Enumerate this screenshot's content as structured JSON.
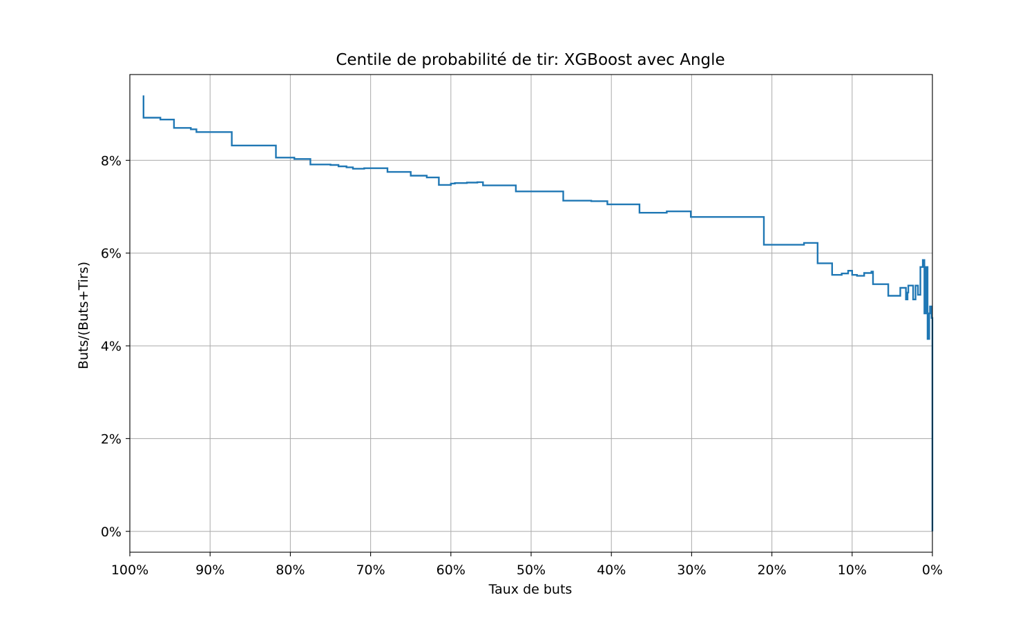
{
  "chart_data": {
    "type": "line",
    "title": "Centile de probabilité de tir: XGBoost avec Angle",
    "xlabel": "Taux de buts",
    "ylabel": "Buts/(Buts+Tirs)",
    "xlim": [
      100,
      0
    ],
    "ylim": [
      -0.45,
      9.85
    ],
    "x_axis_inverted": true,
    "grid": true,
    "x_ticks": [
      100,
      90,
      80,
      70,
      60,
      50,
      40,
      30,
      20,
      10,
      0
    ],
    "x_tick_labels": [
      "100%",
      "90%",
      "80%",
      "70%",
      "60%",
      "50%",
      "40%",
      "30%",
      "20%",
      "10%",
      "0%"
    ],
    "y_ticks": [
      0,
      2,
      4,
      6,
      8
    ],
    "y_tick_labels": [
      "0%",
      "2%",
      "4%",
      "6%",
      "8%"
    ],
    "series": [
      {
        "color": "#1f77b4",
        "x": [
          98.3,
          98.3,
          96.2,
          94.5,
          94.5,
          92.4,
          91.7,
          87.3,
          87.3,
          81.8,
          81.8,
          79.5,
          77.5,
          77.5,
          75.0,
          74.0,
          73.0,
          72.2,
          70.8,
          67.9,
          67.9,
          65.0,
          65.0,
          63.0,
          61.5,
          61.5,
          60.0,
          59.5,
          58.0,
          56.7,
          56.0,
          55.3,
          51.9,
          51.9,
          46.0,
          46.0,
          42.5,
          40.5,
          40.5,
          37.8,
          36.5,
          36.5,
          33.1,
          33.1,
          30.1,
          30.1,
          27.1,
          27.1,
          21.0,
          21.0,
          17.0,
          16.0,
          14.3,
          14.3,
          12.5,
          12.5,
          11.3,
          10.5,
          10.0,
          9.4,
          8.5,
          7.6,
          7.4,
          5.5,
          5.5,
          4.0,
          3.3,
          3.1,
          3.0,
          2.4,
          2.1,
          1.8,
          1.5,
          1.2,
          1.0,
          0.8,
          0.6,
          0.4,
          0.3,
          0.1,
          0.0,
          0.0
        ],
        "y": [
          9.4,
          8.92,
          8.88,
          8.88,
          8.7,
          8.67,
          8.61,
          8.61,
          8.32,
          8.32,
          8.06,
          8.03,
          8.03,
          7.91,
          7.9,
          7.87,
          7.85,
          7.82,
          7.83,
          7.83,
          7.75,
          7.75,
          7.67,
          7.63,
          7.63,
          7.47,
          7.5,
          7.51,
          7.52,
          7.53,
          7.46,
          7.46,
          7.46,
          7.33,
          7.33,
          7.13,
          7.12,
          7.12,
          7.05,
          7.05,
          7.0,
          6.87,
          6.87,
          6.9,
          6.9,
          6.78,
          6.78,
          6.78,
          6.78,
          6.18,
          6.18,
          6.22,
          6.14,
          5.78,
          5.78,
          5.53,
          5.56,
          5.62,
          5.53,
          5.51,
          5.57,
          5.6,
          5.33,
          5.33,
          5.08,
          5.25,
          5.0,
          5.15,
          5.3,
          5.0,
          5.3,
          5.1,
          5.7,
          5.85,
          4.7,
          5.7,
          4.15,
          4.7,
          4.85,
          4.6,
          4.0,
          0.0
        ]
      }
    ]
  }
}
